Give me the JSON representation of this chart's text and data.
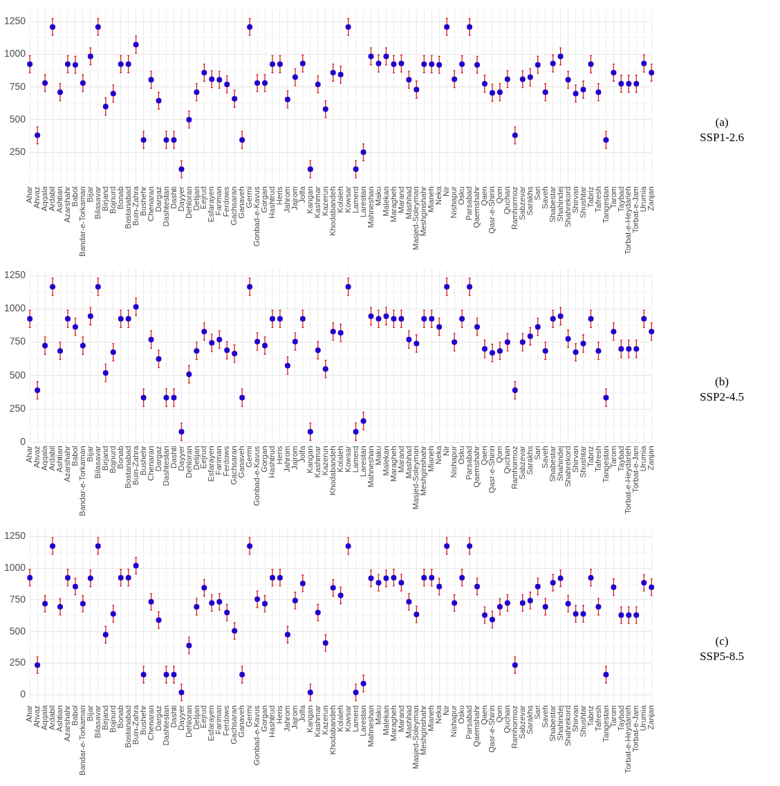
{
  "chart_data": [
    {
      "type": "scatter",
      "annotations": [
        "(a)",
        "SSP1-2.6"
      ],
      "color": "#2200cc",
      "marker": "circle",
      "grid": true,
      "categories": [
        "Ahar",
        "Ahvaz",
        "Aqqala",
        "Ardabil",
        "Ashtian",
        "Azarshahr",
        "Babol",
        "Bandar-e-Torkaman",
        "Bijar",
        "Bilasavar",
        "Birjand",
        "Bojnurd",
        "Bonab",
        "Bostanabad",
        "Buin-Zahra",
        "Bushehr",
        "Chenaran",
        "Dargaz",
        "Dashtestan",
        "Dashti",
        "Dayyer",
        "Dehloran",
        "Delijan",
        "Eejrud",
        "Esfarayen",
        "Fariman",
        "Ferdows",
        "Gachsaran",
        "Ganaveh",
        "Germi",
        "Gonbad-e-Kavus",
        "Gorgan",
        "Hashtrud",
        "Heris",
        "Jahrom",
        "Jajrom",
        "Jolfa",
        "Kangan",
        "Kashmar",
        "Kazerun",
        "Khodabandeh",
        "Kolaleh",
        "Kowsar",
        "Lamerd",
        "Larestan",
        "Mahneshan",
        "Maku",
        "Malekan",
        "Maragheh",
        "Marand",
        "Mashhad",
        "Masjed-Soleyman",
        "Meshginshahr",
        "Mianeh",
        "Neka",
        "Nir",
        "Nishapur",
        "Osku",
        "Parsabad",
        "Qaemshahr",
        "Qaen",
        "Qasr-e-Shirin",
        "Qom",
        "Quchan",
        "Ramhormoz",
        "Sabzevar",
        "Sarakhs",
        "Sari",
        "Saveh",
        "Shabestar",
        "Shahindej",
        "Shahrekord",
        "Shirvan",
        "Shushtar",
        "Tabriz",
        "Tafresh",
        "Tangestan",
        "Tarom",
        "Taybad",
        "Torbat-e-Heydarieh",
        "Torbat-e-Jam",
        "Urumia",
        "Zanjan"
      ],
      "values": [
        925,
        380,
        780,
        1210,
        710,
        925,
        920,
        780,
        985,
        1210,
        600,
        700,
        925,
        925,
        1075,
        345,
        805,
        645,
        345,
        345,
        120,
        500,
        710,
        860,
        810,
        805,
        770,
        660,
        345,
        1210,
        780,
        780,
        925,
        925,
        655,
        825,
        930,
        120,
        770,
        580,
        860,
        845,
        1210,
        120,
        250,
        985,
        930,
        985,
        925,
        930,
        805,
        730,
        925,
        925,
        920,
        1210,
        810,
        925,
        1210,
        920,
        775,
        705,
        710,
        810,
        380,
        810,
        825,
        920,
        710,
        930,
        985,
        805,
        700,
        730,
        925,
        710,
        345,
        860,
        775,
        775,
        775,
        930,
        860
      ],
      "errors": [
        65,
        65,
        65,
        65,
        65,
        65,
        65,
        65,
        65,
        65,
        65,
        65,
        65,
        65,
        65,
        65,
        65,
        65,
        65,
        65,
        65,
        65,
        65,
        65,
        65,
        65,
        65,
        65,
        65,
        65,
        65,
        65,
        65,
        65,
        65,
        65,
        65,
        65,
        65,
        65,
        65,
        65,
        65,
        65,
        65,
        65,
        65,
        65,
        65,
        65,
        65,
        65,
        65,
        65,
        65,
        65,
        65,
        65,
        65,
        65,
        65,
        65,
        65,
        65,
        65,
        65,
        65,
        65,
        65,
        65,
        65,
        65,
        65,
        65,
        65,
        65,
        65,
        65,
        65,
        65,
        65,
        65,
        65
      ],
      "ylim": [
        10,
        1340
      ],
      "yticks": [
        {
          "value": 125,
          "label": null
        },
        250,
        {
          "value": 375,
          "label": null
        },
        500,
        {
          "value": 625,
          "label": null
        },
        750,
        {
          "value": 875,
          "label": null
        },
        1000,
        {
          "value": 1125,
          "label": null
        },
        1250
      ]
    },
    {
      "type": "scatter",
      "annotations": [
        "(b)",
        "SSP2-4.5"
      ],
      "color": "#2200cc",
      "marker": "circle",
      "grid": true,
      "categories": [
        "Ahar",
        "Ahvaz",
        "Aqqala",
        "Ardabil",
        "Ashtian",
        "Azarshahr",
        "Babol",
        "Bandar-e-Torkaman",
        "Bijar",
        "Bilasavar",
        "Birjand",
        "Bojnurd",
        "Bonab",
        "Bostanabad",
        "Buin-Zahra",
        "Bushehr",
        "Chenaran",
        "Dargaz",
        "Dashtestan",
        "Dashti",
        "Dayyer",
        "Dehloran",
        "Delijan",
        "Eejrud",
        "Esfarayen",
        "Fariman",
        "Ferdows",
        "Gachsaran",
        "Ganaveh",
        "Germi",
        "Gonbad-e-Kavus",
        "Gorgan",
        "Hashtrud",
        "Heris",
        "Jahrom",
        "Jajrom",
        "Jolfa",
        "Kangan",
        "Kashmar",
        "Kazerun",
        "Khodabandeh",
        "Kolaleh",
        "Kowsar",
        "Lamerd",
        "Larestan",
        "Mahneshan",
        "Maku",
        "Malekan",
        "Maragheh",
        "Marand",
        "Mashhad",
        "Masjed-Soleyman",
        "Meshginshahr",
        "Mianeh",
        "Neka",
        "Nir",
        "Nishapur",
        "Osku",
        "Parsabad",
        "Qaemshahr",
        "Qaen",
        "Qasr-e-Shirin",
        "Qom",
        "Quchan",
        "Ramhormoz",
        "Sabzevar",
        "Sarakhs",
        "Sari",
        "Saveh",
        "Shabestar",
        "Shahindej",
        "Shahrekord",
        "Shirvan",
        "Shushtar",
        "Tabriz",
        "Tafresh",
        "Tangestan",
        "Tarom",
        "Taybad",
        "Torbat-e-Heydarieh",
        "Torbat-e-Jam",
        "Urumia",
        "Zanjan"
      ],
      "values": [
        925,
        390,
        725,
        1165,
        685,
        925,
        865,
        725,
        945,
        1165,
        520,
        675,
        925,
        925,
        1015,
        335,
        770,
        625,
        335,
        335,
        80,
        510,
        685,
        830,
        745,
        770,
        690,
        665,
        335,
        1165,
        755,
        725,
        925,
        925,
        575,
        755,
        925,
        80,
        690,
        550,
        830,
        820,
        1165,
        80,
        160,
        945,
        925,
        945,
        925,
        925,
        770,
        740,
        925,
        925,
        865,
        1165,
        750,
        925,
        1165,
        865,
        700,
        670,
        685,
        750,
        390,
        750,
        795,
        865,
        685,
        925,
        945,
        775,
        675,
        740,
        925,
        685,
        335,
        830,
        700,
        700,
        700,
        925,
        830
      ],
      "errors": [
        65,
        65,
        65,
        65,
        65,
        65,
        65,
        65,
        65,
        65,
        65,
        65,
        65,
        65,
        65,
        65,
        65,
        65,
        65,
        65,
        65,
        65,
        65,
        65,
        65,
        65,
        65,
        65,
        65,
        65,
        65,
        65,
        65,
        65,
        65,
        65,
        65,
        65,
        65,
        65,
        65,
        65,
        65,
        65,
        65,
        65,
        65,
        65,
        65,
        65,
        65,
        65,
        65,
        65,
        65,
        65,
        65,
        65,
        65,
        65,
        65,
        65,
        65,
        65,
        65,
        65,
        65,
        65,
        65,
        65,
        65,
        65,
        65,
        65,
        65,
        65,
        65,
        65,
        65,
        65,
        65,
        65,
        65
      ],
      "ylim": [
        -5,
        1295
      ],
      "yticks": [
        0,
        {
          "value": 125,
          "label": null
        },
        250,
        {
          "value": 375,
          "label": null
        },
        500,
        {
          "value": 625,
          "label": null
        },
        750,
        {
          "value": 875,
          "label": null
        },
        1000,
        {
          "value": 1125,
          "label": null
        },
        1250
      ]
    },
    {
      "type": "scatter",
      "annotations": [
        "(c)",
        "SSP5-8.5"
      ],
      "color": "#2200cc",
      "marker": "circle",
      "grid": true,
      "categories": [
        "Ahar",
        "Ahvaz",
        "Aqqala",
        "Ardabil",
        "Ashtian",
        "Azarshahr",
        "Babol",
        "Bandar-e-Torkaman",
        "Bijar",
        "Bilasavar",
        "Birjand",
        "Bojnurd",
        "Bonab",
        "Bostanabad",
        "Buin-Zahra",
        "Bushehr",
        "Chenaran",
        "Dargaz",
        "Dashtestan",
        "Dashti",
        "Dayyer",
        "Dehloran",
        "Delijan",
        "Eejrud",
        "Esfarayen",
        "Fariman",
        "Ferdows",
        "Gachsaran",
        "Ganaveh",
        "Germi",
        "Gonbad-e-Kavus",
        "Gorgan",
        "Hashtrud",
        "Heris",
        "Jahrom",
        "Jajrom",
        "Jolfa",
        "Kangan",
        "Kashmar",
        "Kazerun",
        "Khodabandeh",
        "Kolaleh",
        "Kowsar",
        "Lamerd",
        "Larestan",
        "Mahneshan",
        "Maku",
        "Malekan",
        "Maragheh",
        "Marand",
        "Mashhad",
        "Masjed-Soleyman",
        "Meshginshahr",
        "Mianeh",
        "Neka",
        "Nir",
        "Nishapur",
        "Osku",
        "Parsabad",
        "Qaemshahr",
        "Qaen",
        "Qasr-e-Shirin",
        "Qom",
        "Quchan",
        "Ramhormoz",
        "Sabzevar",
        "Sarakhs",
        "Sari",
        "Saveh",
        "Shabestar",
        "Shahindej",
        "Shahrekord",
        "Shirvan",
        "Shushtar",
        "Tabriz",
        "Tafresh",
        "Tangestan",
        "Tarom",
        "Taybad",
        "Torbat-e-Heydarieh",
        "Torbat-e-Jam",
        "Urumia",
        "Zanjan"
      ],
      "values": [
        925,
        235,
        720,
        1175,
        695,
        925,
        855,
        720,
        920,
        1175,
        475,
        640,
        925,
        925,
        1020,
        160,
        735,
        590,
        160,
        160,
        20,
        390,
        695,
        845,
        725,
        735,
        650,
        505,
        160,
        1175,
        755,
        720,
        925,
        925,
        475,
        745,
        880,
        20,
        650,
        410,
        845,
        785,
        1175,
        20,
        90,
        920,
        885,
        920,
        925,
        885,
        735,
        635,
        925,
        925,
        855,
        1175,
        725,
        925,
        1175,
        855,
        630,
        595,
        695,
        725,
        235,
        725,
        745,
        855,
        695,
        885,
        920,
        720,
        640,
        640,
        925,
        695,
        160,
        850,
        630,
        630,
        630,
        885,
        850
      ],
      "errors": [
        65,
        65,
        65,
        65,
        65,
        65,
        65,
        65,
        65,
        65,
        65,
        65,
        65,
        65,
        65,
        65,
        65,
        65,
        65,
        65,
        65,
        65,
        65,
        65,
        65,
        65,
        65,
        65,
        65,
        65,
        65,
        65,
        65,
        65,
        65,
        65,
        65,
        65,
        65,
        65,
        65,
        65,
        65,
        65,
        65,
        65,
        65,
        65,
        65,
        65,
        65,
        65,
        65,
        65,
        65,
        65,
        65,
        65,
        65,
        65,
        65,
        65,
        65,
        65,
        65,
        65,
        65,
        65,
        65,
        65,
        65,
        65,
        65,
        65,
        65,
        65,
        65,
        65,
        65,
        65,
        65,
        65,
        65
      ],
      "ylim": [
        -60,
        1310
      ],
      "yticks": [
        0,
        {
          "value": 125,
          "label": null
        },
        250,
        {
          "value": 375,
          "label": null
        },
        500,
        {
          "value": 625,
          "label": null
        },
        750,
        {
          "value": 875,
          "label": null
        },
        1000,
        {
          "value": 1125,
          "label": null
        },
        1250
      ]
    }
  ]
}
